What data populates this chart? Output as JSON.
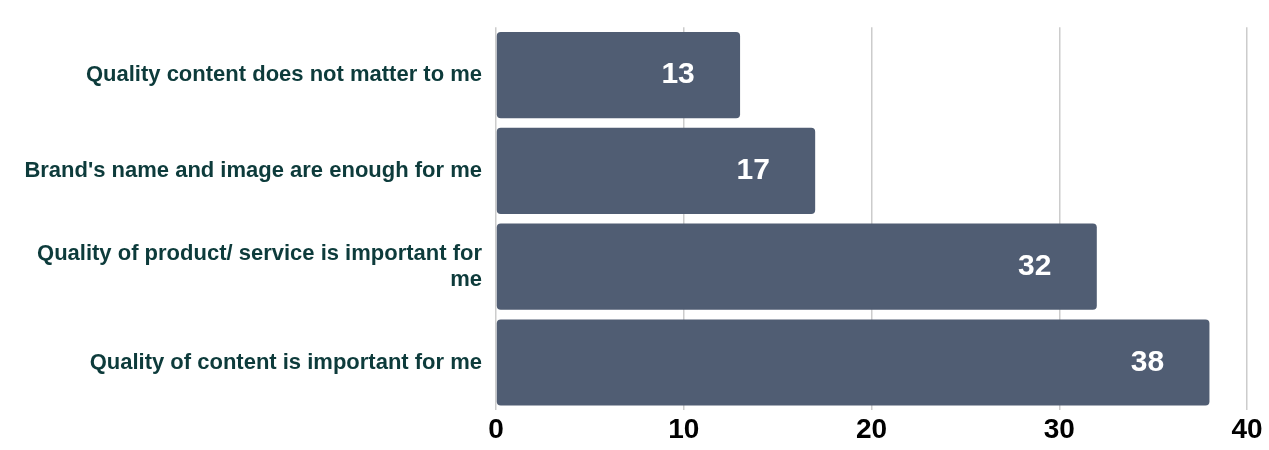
{
  "chart_data": {
    "type": "bar",
    "orientation": "horizontal",
    "categories": [
      "Quality content does not matter to me",
      "Brand's name and image are enough for me",
      "Quality of product/ service is important for me",
      "Quality of content is important for me"
    ],
    "values": [
      13,
      17,
      32,
      38
    ],
    "color": "#505d73",
    "xlim": [
      0,
      40
    ],
    "xticks": [
      0,
      10,
      20,
      30,
      40
    ],
    "grid": "x",
    "data_labels": true,
    "legend": false
  }
}
